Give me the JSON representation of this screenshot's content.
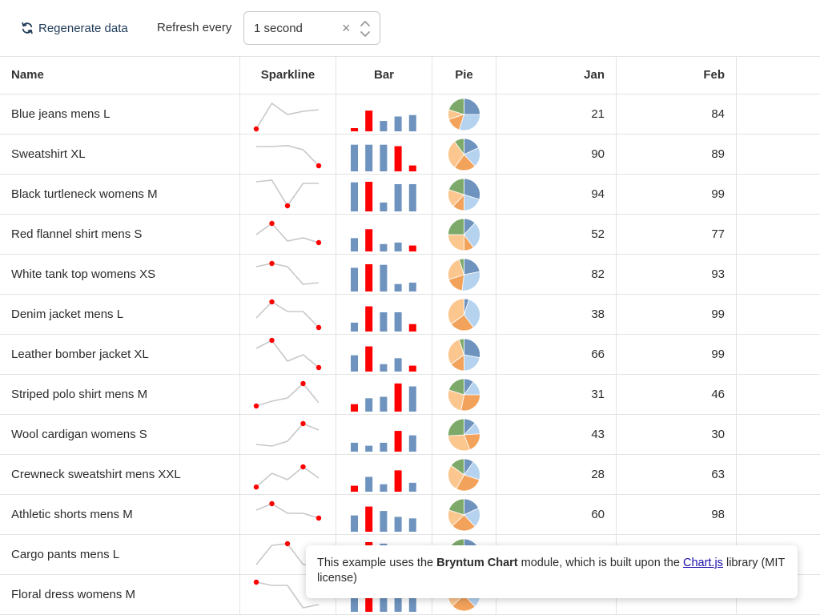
{
  "toolbar": {
    "regenerate_label": "Regenerate data",
    "refresh_label": "Refresh every",
    "refresh_value": "1 second",
    "clear_glyph": "×"
  },
  "columns": [
    "Name",
    "Sparkline",
    "Bar",
    "Pie",
    "Jan",
    "Feb"
  ],
  "colors": {
    "bar": "#6e93be",
    "highlight": "#ff0000",
    "line": "#c8c8c8",
    "pie": [
      "#6e93be",
      "#b5d3ef",
      "#f2a25a",
      "#fcc78f",
      "#7daa6a"
    ]
  },
  "rows": [
    {
      "name": "Blue jeans mens L",
      "jan": "21",
      "feb": "84"
    },
    {
      "name": "Sweatshirt XL",
      "jan": "90",
      "feb": "89"
    },
    {
      "name": "Black turtleneck womens M",
      "jan": "94",
      "feb": "99"
    },
    {
      "name": "Red flannel shirt mens S",
      "jan": "52",
      "feb": "77"
    },
    {
      "name": "White tank top womens XS",
      "jan": "82",
      "feb": "93"
    },
    {
      "name": "Denim jacket mens L",
      "jan": "38",
      "feb": "99"
    },
    {
      "name": "Leather bomber jacket XL",
      "jan": "66",
      "feb": "99"
    },
    {
      "name": "Striped polo shirt mens M",
      "jan": "31",
      "feb": "46"
    },
    {
      "name": "Wool cardigan womens S",
      "jan": "43",
      "feb": "30"
    },
    {
      "name": "Crewneck sweatshirt mens XXL",
      "jan": "28",
      "feb": "63"
    },
    {
      "name": "Athletic shorts mens M",
      "jan": "60",
      "feb": "98"
    },
    {
      "name": "Cargo pants mens L",
      "jan": "",
      "feb": ""
    },
    {
      "name": "Floral dress womens M",
      "jan": "",
      "feb": ""
    }
  ],
  "chart_data": {
    "type": "table",
    "columns": [
      "Name",
      "Jan",
      "Feb"
    ],
    "rows": [
      [
        "Blue jeans mens L",
        21,
        84
      ],
      [
        "Sweatshirt XL",
        90,
        89
      ],
      [
        "Black turtleneck womens M",
        94,
        99
      ],
      [
        "Red flannel shirt mens S",
        52,
        77
      ],
      [
        "White tank top womens XS",
        82,
        93
      ],
      [
        "Denim jacket mens L",
        38,
        99
      ],
      [
        "Leather bomber jacket XL",
        66,
        99
      ],
      [
        "Striped polo shirt mens M",
        31,
        46
      ],
      [
        "Wool cardigan womens S",
        43,
        30
      ],
      [
        "Crewneck sweatshirt mens XXL",
        28,
        63
      ],
      [
        "Athletic shorts mens M",
        60,
        98
      ]
    ],
    "sparklines": [
      [
        5,
        85,
        50,
        60,
        65
      ],
      [
        75,
        75,
        78,
        65,
        15
      ],
      [
        90,
        95,
        15,
        85,
        85
      ],
      [
        50,
        85,
        30,
        40,
        25
      ],
      [
        75,
        85,
        75,
        20,
        25
      ],
      [
        40,
        90,
        60,
        60,
        10
      ],
      [
        70,
        95,
        30,
        50,
        10
      ],
      [
        15,
        30,
        40,
        85,
        25
      ],
      [
        20,
        15,
        30,
        85,
        65
      ],
      [
        12,
        55,
        35,
        75,
        40
      ],
      [
        65,
        85,
        55,
        55,
        40
      ],
      [
        20,
        80,
        85,
        20,
        15
      ],
      [
        90,
        80,
        80,
        10,
        20
      ]
    ],
    "sparkline_highlight_index": [
      0,
      4,
      2,
      1,
      1,
      1,
      1,
      3,
      3,
      3,
      1,
      2,
      0
    ],
    "sparkline_endpoint_shown": [
      true,
      false,
      false,
      true,
      false,
      true,
      true,
      true,
      false,
      true,
      true,
      false,
      false
    ],
    "bars": [
      [
        10,
        70,
        35,
        50,
        55
      ],
      [
        90,
        90,
        90,
        85,
        20
      ],
      [
        98,
        100,
        30,
        92,
        92
      ],
      [
        45,
        75,
        25,
        30,
        20
      ],
      [
        80,
        92,
        90,
        25,
        30
      ],
      [
        30,
        85,
        65,
        65,
        25
      ],
      [
        55,
        85,
        25,
        45,
        20
      ],
      [
        25,
        45,
        50,
        95,
        85
      ],
      [
        30,
        20,
        30,
        70,
        55
      ],
      [
        20,
        50,
        25,
        72,
        30
      ],
      [
        55,
        85,
        70,
        50,
        45
      ],
      [
        60,
        100,
        95,
        50,
        80
      ],
      [
        60,
        100,
        95,
        50,
        80
      ]
    ],
    "bar_highlight_index": [
      1,
      3,
      1,
      1,
      1,
      1,
      1,
      3,
      3,
      3,
      1,
      1,
      1
    ],
    "pies": [
      [
        25,
        30,
        15,
        10,
        20
      ],
      [
        18,
        20,
        22,
        30,
        10
      ],
      [
        30,
        20,
        12,
        18,
        20
      ],
      [
        12,
        28,
        10,
        25,
        25
      ],
      [
        22,
        30,
        18,
        25,
        5
      ],
      [
        5,
        35,
        25,
        35,
        0
      ],
      [
        28,
        22,
        15,
        30,
        5
      ],
      [
        10,
        15,
        28,
        27,
        20
      ],
      [
        12,
        12,
        20,
        30,
        26
      ],
      [
        10,
        20,
        28,
        27,
        15
      ],
      [
        18,
        20,
        25,
        17,
        20
      ],
      [
        18,
        20,
        25,
        17,
        20
      ],
      [
        18,
        20,
        25,
        17,
        20
      ]
    ]
  },
  "tooltip": {
    "pre": "This example uses the ",
    "strong": "Bryntum Chart",
    "mid": " module, which is built upon the ",
    "link": "Chart.js",
    "post": " library (MIT license)"
  }
}
